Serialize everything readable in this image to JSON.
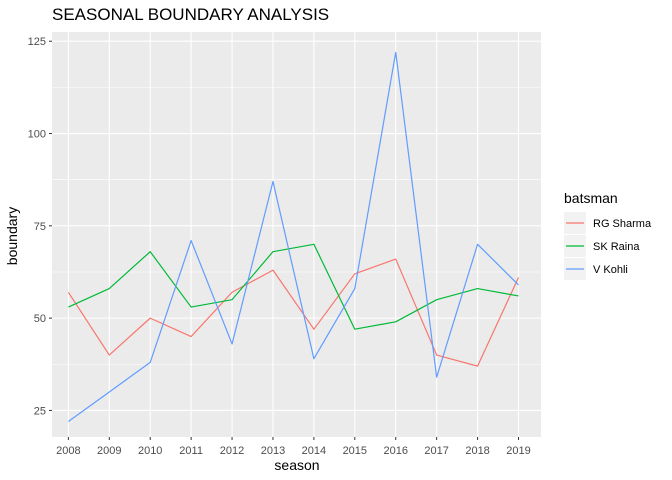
{
  "chart_data": {
    "type": "line",
    "title": "SEASONAL BOUNDARY ANALYSIS",
    "xlabel": "season",
    "ylabel": "boundary",
    "x": [
      2008,
      2009,
      2010,
      2011,
      2012,
      2013,
      2014,
      2015,
      2016,
      2017,
      2018,
      2019
    ],
    "xlim": [
      2007.6,
      2019.55
    ],
    "ylim": [
      17.8,
      127.5
    ],
    "y_ticks": [
      25,
      50,
      75,
      100,
      125
    ],
    "grid": true,
    "legend": {
      "title": "batsman",
      "placement": "right"
    },
    "series": [
      {
        "name": "RG Sharma",
        "color": "#f8766d",
        "values": [
          57,
          40,
          50,
          45,
          57,
          63,
          47,
          62,
          66,
          40,
          37,
          61
        ]
      },
      {
        "name": "SK Raina",
        "color": "#00ba38",
        "values": [
          53,
          58,
          68,
          53,
          55,
          68,
          70,
          47,
          49,
          55,
          58,
          56
        ]
      },
      {
        "name": "V Kohli",
        "color": "#619cff",
        "values": [
          22,
          30,
          38,
          71,
          43,
          87,
          39,
          58,
          122,
          34,
          70,
          59
        ]
      }
    ]
  }
}
